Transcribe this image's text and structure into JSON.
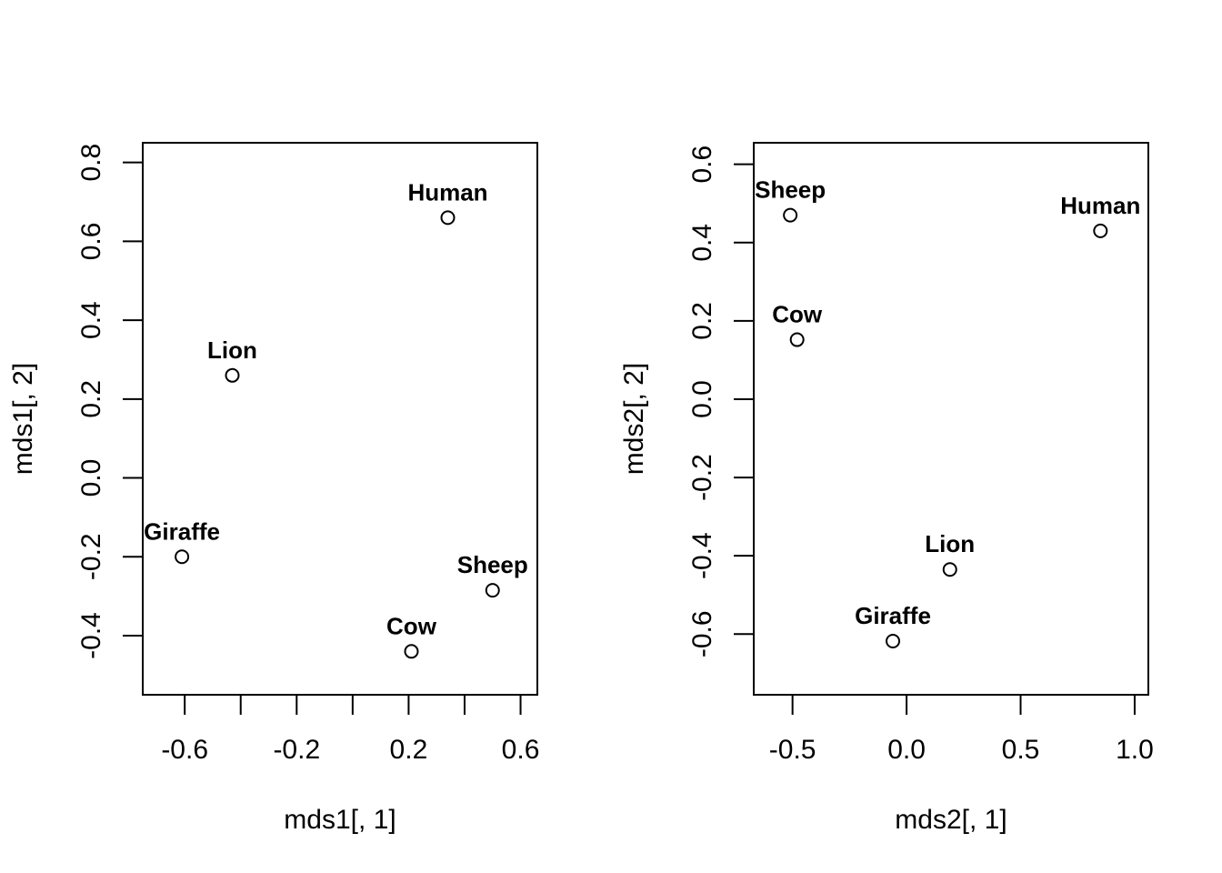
{
  "chart_data": [
    {
      "type": "scatter",
      "title": "",
      "xlabel": "mds1[, 1]",
      "ylabel": "mds1[, 2]",
      "xlim": [
        -0.75,
        0.66
      ],
      "ylim": [
        -0.55,
        0.85
      ],
      "xticks": [
        -0.6,
        -0.4,
        -0.2,
        0.0,
        0.2,
        0.4,
        0.6
      ],
      "xtick_labels": [
        "-0.6",
        "",
        "-0.2",
        "",
        "0.2",
        "",
        "0.6"
      ],
      "yticks": [
        -0.4,
        -0.2,
        0.0,
        0.2,
        0.4,
        0.6,
        0.8
      ],
      "ytick_labels": [
        "-0.4",
        "-0.2",
        "0.0",
        "0.2",
        "0.4",
        "0.6",
        "0.8"
      ],
      "grid": false,
      "points": [
        {
          "label": "Human",
          "x": 0.34,
          "y": 0.66
        },
        {
          "label": "Lion",
          "x": -0.43,
          "y": 0.26
        },
        {
          "label": "Giraffe",
          "x": -0.61,
          "y": -0.2
        },
        {
          "label": "Cow",
          "x": 0.21,
          "y": -0.44
        },
        {
          "label": "Sheep",
          "x": 0.5,
          "y": -0.285
        }
      ]
    },
    {
      "type": "scatter",
      "title": "",
      "xlabel": "mds2[, 1]",
      "ylabel": "mds2[, 2]",
      "xlim": [
        -0.67,
        1.06
      ],
      "ylim": [
        -0.755,
        0.655
      ],
      "xticks": [
        -0.5,
        0.0,
        0.5,
        1.0
      ],
      "xtick_labels": [
        "-0.5",
        "0.0",
        "0.5",
        "1.0"
      ],
      "yticks": [
        -0.6,
        -0.4,
        -0.2,
        0.0,
        0.2,
        0.4,
        0.6
      ],
      "ytick_labels": [
        "-0.6",
        "-0.4",
        "-0.2",
        "0.0",
        "0.2",
        "0.4",
        "0.6"
      ],
      "grid": false,
      "points": [
        {
          "label": "Sheep",
          "x": -0.51,
          "y": 0.47
        },
        {
          "label": "Human",
          "x": 0.85,
          "y": 0.43
        },
        {
          "label": "Cow",
          "x": -0.48,
          "y": 0.152
        },
        {
          "label": "Lion",
          "x": 0.19,
          "y": -0.435
        },
        {
          "label": "Giraffe",
          "x": -0.06,
          "y": -0.618
        }
      ]
    }
  ]
}
